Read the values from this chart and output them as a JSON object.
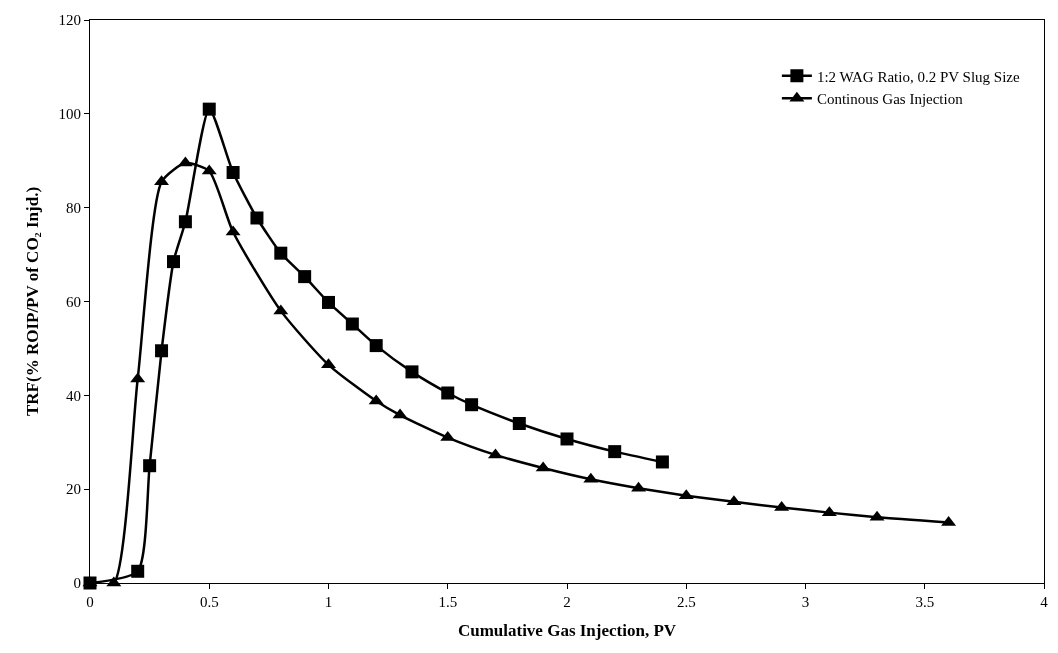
{
  "chart_data": {
    "type": "line",
    "xlabel": "Cumulative Gas Injection, PV",
    "ylabel": "TRF(% ROIP/PV of CO₂ Injd.)",
    "xlim": [
      0,
      4
    ],
    "xticks": [
      0,
      0.5,
      1,
      1.5,
      2,
      2.5,
      3,
      3.5,
      4
    ],
    "ylim": [
      0,
      120
    ],
    "yticks": [
      0,
      20,
      40,
      60,
      80,
      100,
      120
    ],
    "legend": "top right",
    "line_style": "solid",
    "series": [
      {
        "name": "1:2 WAG Ratio, 0.2 PV Slug Size",
        "color": "#000000",
        "marker": "square",
        "x": [
          0,
          0.2,
          0.25,
          0.3,
          0.35,
          0.4,
          0.5,
          0.6,
          0.7,
          0.8,
          0.9,
          1.0,
          1.1,
          1.2,
          1.35,
          1.5,
          1.6,
          1.8,
          2.0,
          2.2,
          2.4
        ],
        "values": [
          0,
          2.5,
          25,
          49.5,
          68.5,
          77,
          101,
          87.5,
          77.8,
          70.3,
          65.3,
          59.8,
          55.2,
          50.6,
          45,
          40.5,
          38,
          34,
          30.7,
          28,
          25.8
        ]
      },
      {
        "name": "Continous Gas Injection",
        "color": "#000000",
        "marker": "triangle",
        "x": [
          0,
          0.1,
          0.2,
          0.3,
          0.4,
          0.5,
          0.6,
          0.8,
          1.0,
          1.2,
          1.3,
          1.5,
          1.7,
          1.9,
          2.1,
          2.3,
          2.5,
          2.7,
          2.9,
          3.1,
          3.3,
          3.6
        ],
        "values": [
          0,
          0,
          43.5,
          85.5,
          89.5,
          87.8,
          74.8,
          58,
          46.5,
          38.8,
          35.8,
          31,
          27.3,
          24.5,
          22.1,
          20.2,
          18.6,
          17.3,
          16.1,
          15,
          14,
          12.9
        ]
      }
    ]
  }
}
